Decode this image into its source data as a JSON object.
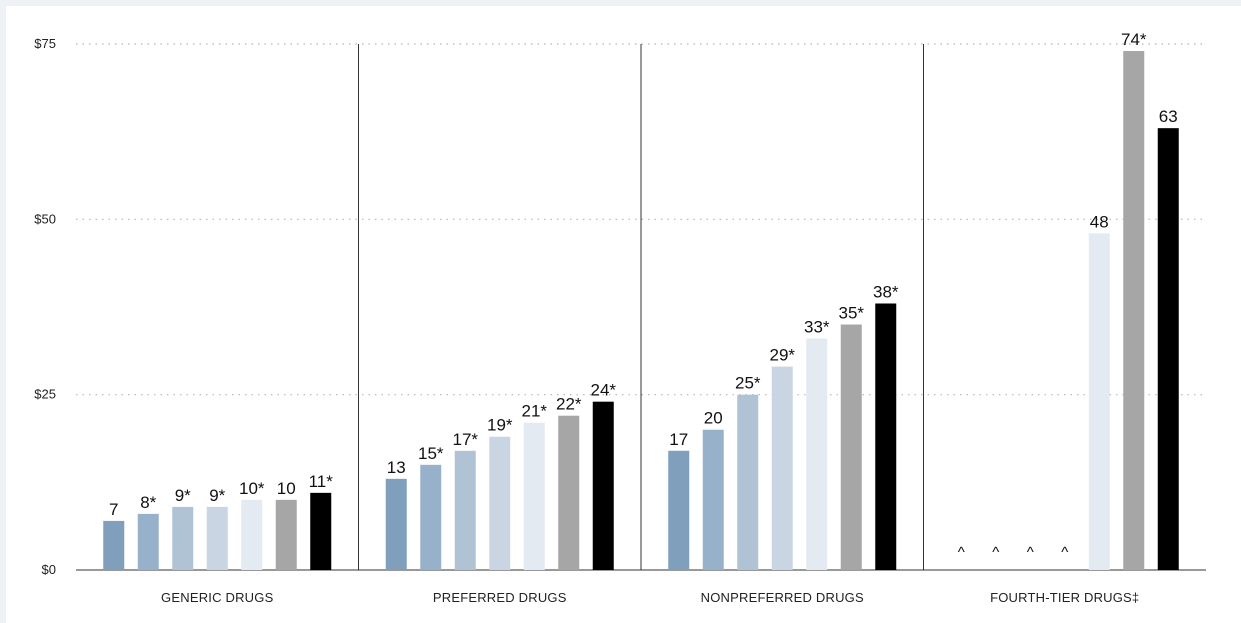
{
  "chart_data": {
    "type": "bar",
    "title": "",
    "xlabel": "",
    "ylabel": "",
    "ylim": [
      0,
      75
    ],
    "y_ticks": [
      {
        "value": 0,
        "label": "$0"
      },
      {
        "value": 25,
        "label": "$25"
      },
      {
        "value": 50,
        "label": "$50"
      },
      {
        "value": 75,
        "label": "$75"
      }
    ],
    "grid": "dotted horizontal",
    "legend": "none",
    "categories": [
      "GENERIC DRUGS",
      "PREFERRED DRUGS",
      "NONPREFERRED DRUGS",
      "FOURTH-TIER DRUGS‡"
    ],
    "series": [
      {
        "color": "#7f9fbd",
        "values": [
          7,
          13,
          17,
          null
        ],
        "labels": [
          "7",
          "13",
          "17",
          "^"
        ]
      },
      {
        "color": "#97b1cb",
        "values": [
          8,
          15,
          20,
          null
        ],
        "labels": [
          "8*",
          "15*",
          "20",
          "^"
        ]
      },
      {
        "color": "#b0c3d5",
        "values": [
          9,
          17,
          25,
          null
        ],
        "labels": [
          "9*",
          "17*",
          "25*",
          "^"
        ]
      },
      {
        "color": "#c9d5e3",
        "values": [
          9,
          19,
          29,
          null
        ],
        "labels": [
          "9*",
          "19*",
          "29*",
          "^"
        ]
      },
      {
        "color": "#e4eaf2",
        "values": [
          10,
          21,
          33,
          48
        ],
        "labels": [
          "10*",
          "21*",
          "33*",
          "48"
        ]
      },
      {
        "color": "#a6a6a6",
        "values": [
          10,
          22,
          35,
          74
        ],
        "labels": [
          "10",
          "22*",
          "35*",
          "74*"
        ]
      },
      {
        "color": "#000000",
        "values": [
          11,
          24,
          38,
          63
        ],
        "labels": [
          "11*",
          "24*",
          "38*",
          "63"
        ]
      }
    ]
  }
}
